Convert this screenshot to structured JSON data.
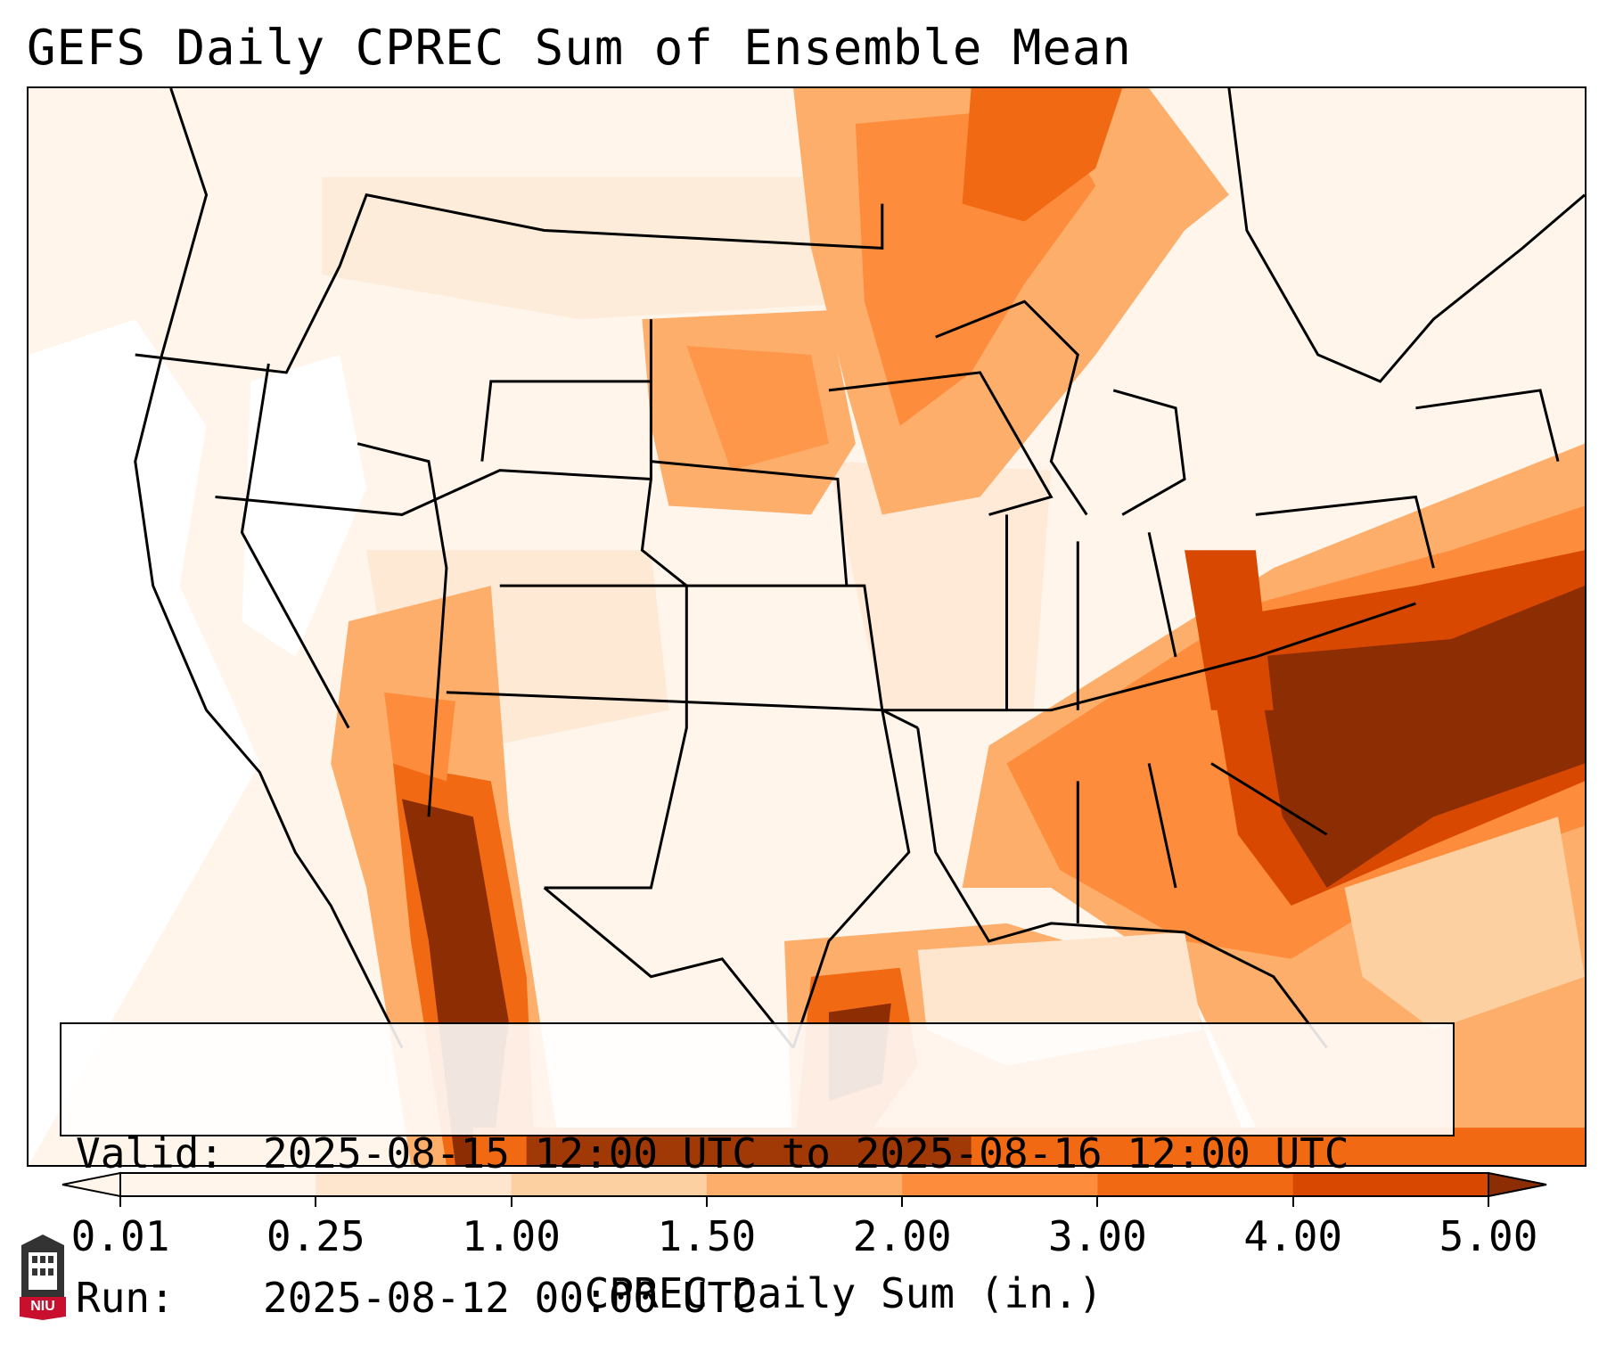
{
  "title": "GEFS Daily CPREC Sum of Ensemble Mean",
  "info": {
    "valid_key": "Valid:",
    "valid_value": "2025-08-15 12:00 UTC to 2025-08-16 12:00 UTC",
    "run_key": "Run:",
    "run_value": "2025-08-12 00:00 UTC"
  },
  "colorbar": {
    "label": "CPREC Daily Sum (in.)",
    "ticks": [
      "0.01",
      "0.25",
      "1.00",
      "1.50",
      "2.00",
      "3.00",
      "4.00",
      "5.00"
    ],
    "colors": [
      "#fff5eb",
      "#fee6ce",
      "#fdd0a2",
      "#fdae6b",
      "#fd8d3c",
      "#f16913",
      "#d94801",
      "#8c2d04"
    ],
    "extend": "both"
  },
  "logo": {
    "text": "NIU"
  },
  "colors": {
    "trace": "#fff5eb",
    "light": "#fee6ce",
    "light2": "#fdd0a2",
    "mid": "#fdae6b",
    "orange": "#fd8d3c",
    "dark_orange": "#f16913",
    "deep": "#d94801",
    "max": "#8c2d04"
  }
}
